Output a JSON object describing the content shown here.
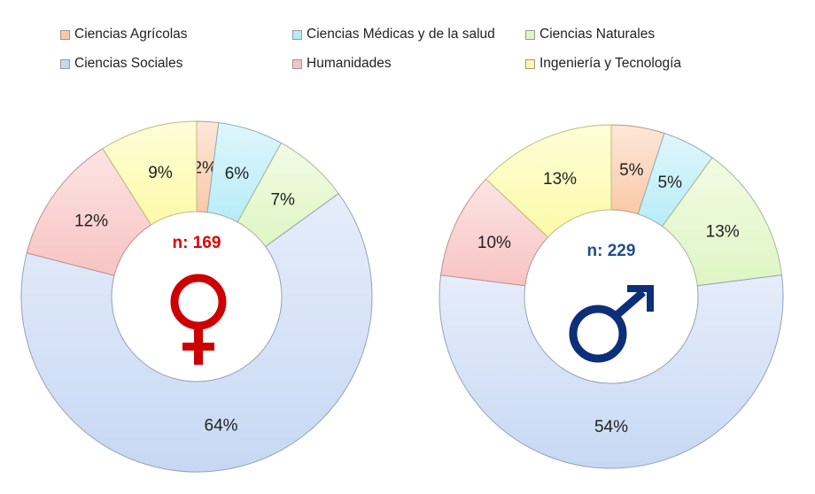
{
  "chart_data": {
    "type": "pie",
    "categories": [
      "Ciencias Agrícolas",
      "Ciencias Médicas y de la salud",
      "Ciencias Naturales",
      "Ciencias Sociales",
      "Humanidades",
      "Ingeniería y Tecnología"
    ],
    "colors": {
      "Ciencias Agrícolas": "#fac9a8",
      "Ciencias Médicas y de la salud": "#b7ecf7",
      "Ciencias Naturales": "#dff5c4",
      "Ciencias Sociales": "#c7d8f4",
      "Humanidades": "#f8c3c3",
      "Ingeniería y Tecnología": "#fcfaa8"
    },
    "slice_order": [
      "Ciencias Agrícolas",
      "Ciencias Médicas y de la salud",
      "Ciencias Naturales",
      "Ciencias Sociales",
      "Humanidades",
      "Ingeniería y Tecnología"
    ],
    "series": [
      {
        "n_label": "n: 169",
        "n_color": "#e00000",
        "symbol": "female-symbol-icon",
        "symbol_color": "#cc0000",
        "values": [
          2,
          6,
          7,
          64,
          12,
          9
        ],
        "labels": [
          "2%",
          "6%",
          "7%",
          "64%",
          "12%",
          "9%"
        ]
      },
      {
        "n_label": "n: 229",
        "n_color": "#1f4e8c",
        "symbol": "male-symbol-icon",
        "symbol_color": "#0c2f7a",
        "values": [
          5,
          5,
          13,
          54,
          10,
          13
        ],
        "labels": [
          "5%",
          "5%",
          "13%",
          "54%",
          "10%",
          "13%"
        ]
      }
    ],
    "legend_position": "top"
  }
}
